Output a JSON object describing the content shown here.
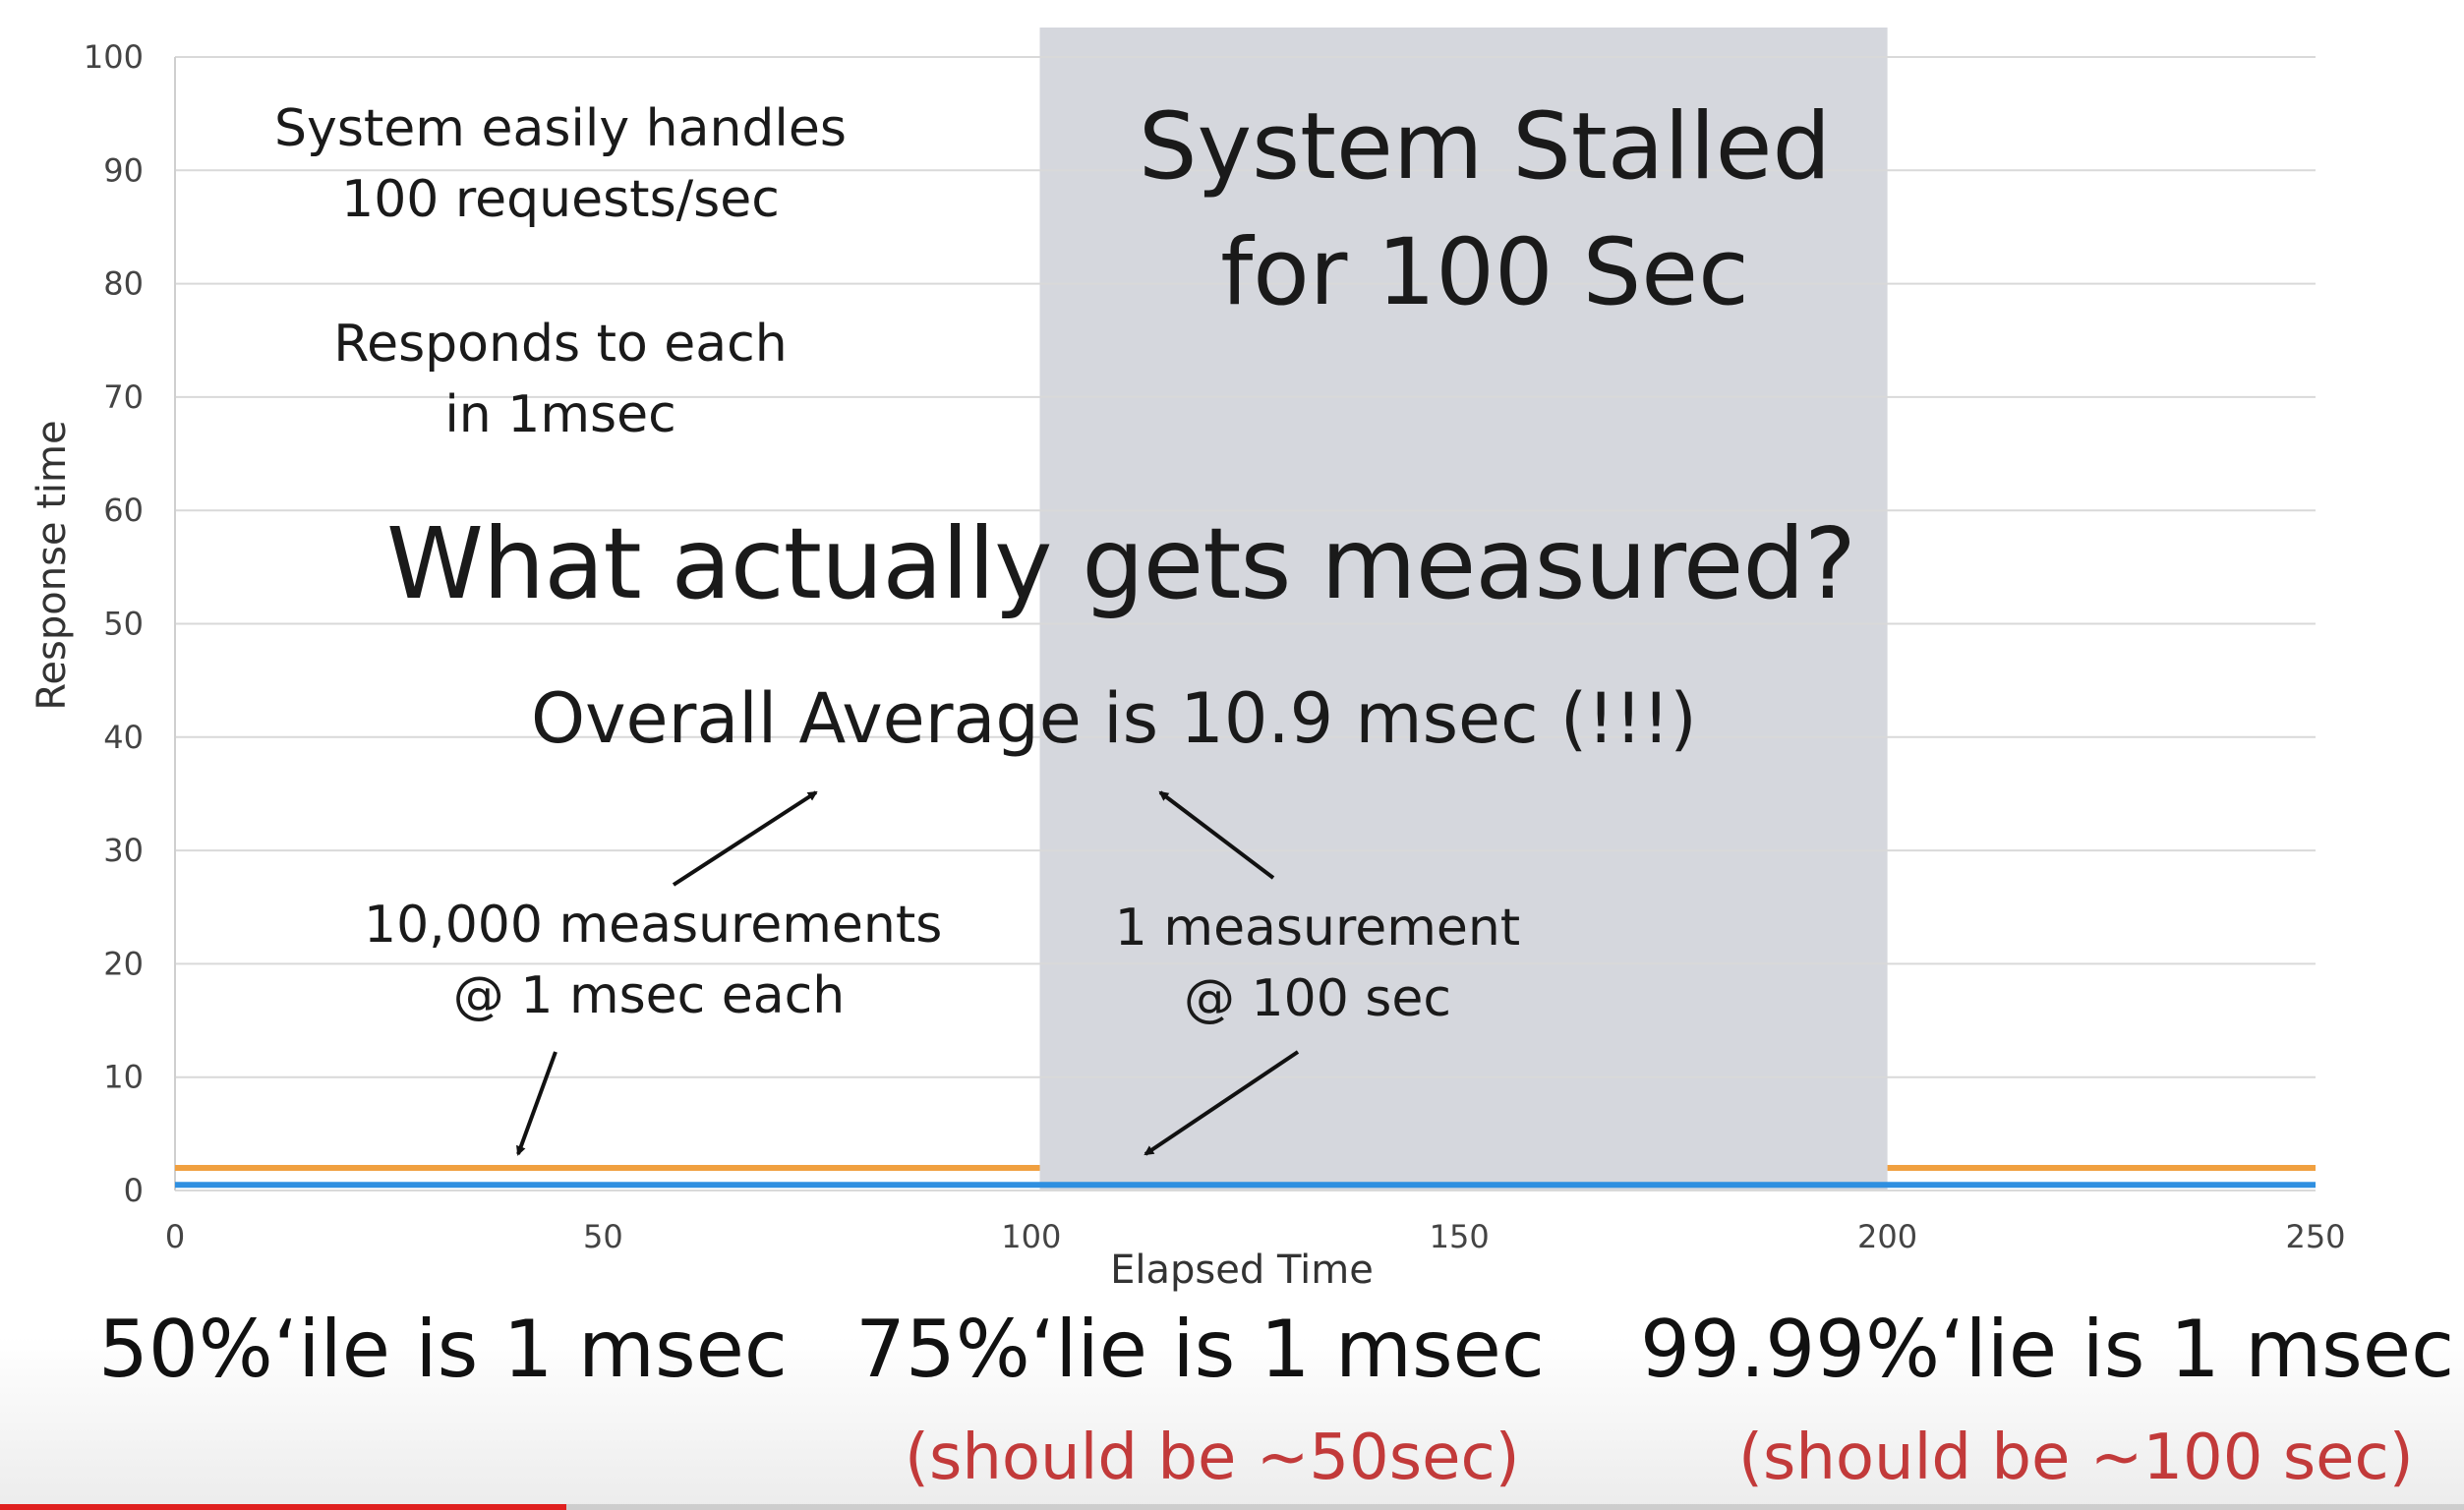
{
  "chart_data": {
    "type": "line",
    "xlabel": "Elapsed Time",
    "ylabel": "Response time",
    "xlim": [
      0,
      250
    ],
    "ylim": [
      0,
      100
    ],
    "x_ticks": [
      "0",
      "50",
      "100",
      "150",
      "200",
      "250"
    ],
    "y_ticks": [
      "0",
      "10",
      "20",
      "30",
      "40",
      "50",
      "60",
      "70",
      "80",
      "90",
      "100"
    ],
    "grid": true,
    "legend": "none",
    "shaded_region": {
      "x_start": 101,
      "x_end": 200
    },
    "series": [
      {
        "color": "#f0a040",
        "segments": [
          {
            "x": [
              0,
              101
            ],
            "y": [
              2,
              2
            ]
          },
          {
            "x": [
              200,
              250
            ],
            "y": [
              2,
              2
            ]
          }
        ]
      },
      {
        "color": "#2f8fe0",
        "segments": [
          {
            "x": [
              0,
              250
            ],
            "y": [
              0.5,
              0.5
            ]
          }
        ]
      }
    ]
  },
  "annotations": {
    "handles_line1": "System easily handles",
    "handles_line2": "100 requests/sec",
    "responds_line1": "Responds to each",
    "responds_line2": "in 1msec",
    "stalled_line1": "System Stalled",
    "stalled_line2": "for 100 Sec",
    "headline": "What actually gets measured?",
    "average": "Overall Average is 10.9 msec (!!!)",
    "left_line1": "10,000 measurements",
    "left_line2": "@ 1 msec each",
    "right_line1": "1 measurement",
    "right_line2": "@ 100 sec"
  },
  "percentiles": {
    "p50": "50%‘ile is 1 msec",
    "p75": "75%‘lie is 1 msec",
    "p75_should": "(should be ~50sec)",
    "p9999": "99.99%‘lie is 1 msec",
    "p9999_should": "(should be ~100 sec)"
  },
  "colors": {
    "stall_shade": "#d5d7dd",
    "should_text": "#c23a3a",
    "progress": "#e0201f"
  },
  "video_progress": 0.23
}
